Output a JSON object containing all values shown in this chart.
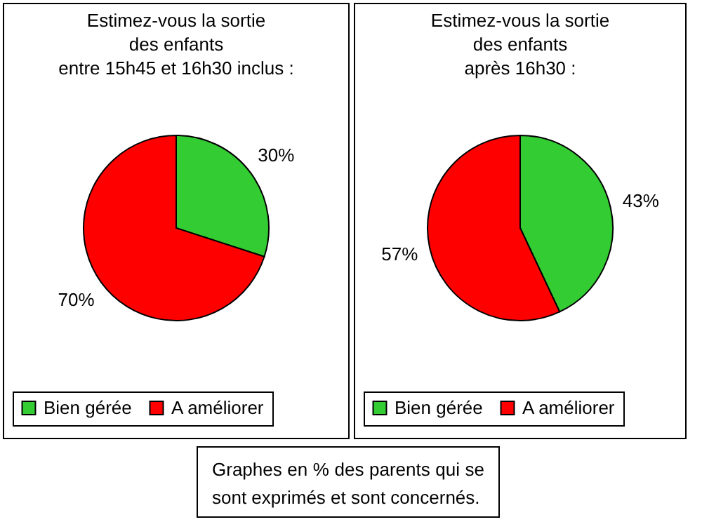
{
  "chart_data": [
    {
      "type": "pie",
      "title": "Estimez-vous la sortie\ndes enfants\nentre 15h45 et 16h30 inclus :",
      "categories": [
        "Bien gérée",
        "A améliorer"
      ],
      "values": [
        30,
        70
      ],
      "colors": [
        "#33cc33",
        "#ff0000"
      ],
      "value_labels": [
        "30%",
        "70%"
      ],
      "legend": "bottom"
    },
    {
      "type": "pie",
      "title": "Estimez-vous la sortie\ndes enfants\naprès 16h30 :",
      "categories": [
        "Bien gérée",
        "A améliorer"
      ],
      "values": [
        43,
        57
      ],
      "colors": [
        "#33cc33",
        "#ff0000"
      ],
      "value_labels": [
        "43%",
        "57%"
      ],
      "legend": "bottom"
    },
    {
      "type": "other",
      "annotations": [
        "Graphes en % des parents  qui se sont exprimés et sont concernés."
      ]
    }
  ]
}
